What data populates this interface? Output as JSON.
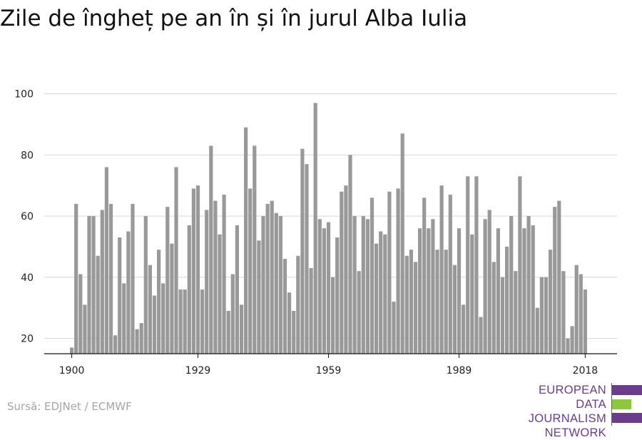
{
  "header": {
    "title": "Zile de îngheț pe an în și în jurul Alba Iulia"
  },
  "footer": {
    "source": "Sursă: EDJNet / ECMWF"
  },
  "logo": {
    "lines": [
      "EUROPEAN",
      "DATA JOURNALISM",
      "NETWORK"
    ],
    "colors": {
      "purple": "#6a3d8a",
      "green": "#8dc63f"
    }
  },
  "chart_data": {
    "type": "bar",
    "title": "Zile de îngheț pe an în și în jurul Alba Iulia",
    "xlabel": "",
    "ylabel": "",
    "x_ticks": [
      1900,
      1929,
      1959,
      1989,
      2018
    ],
    "y_ticks": [
      20,
      40,
      60,
      80,
      100
    ],
    "xlim": [
      1900,
      2018
    ],
    "ylim": [
      15,
      100
    ],
    "grid": true,
    "bar_color": "#999999",
    "years_start": 1900,
    "years_end": 2018,
    "values": [
      17,
      64,
      41,
      31,
      60,
      60,
      47,
      62,
      76,
      64,
      21,
      53,
      38,
      55,
      64,
      23,
      25,
      60,
      44,
      34,
      49,
      38,
      63,
      51,
      76,
      36,
      36,
      57,
      69,
      70,
      36,
      62,
      83,
      65,
      54,
      67,
      29,
      41,
      57,
      31,
      89,
      69,
      83,
      52,
      60,
      64,
      65,
      61,
      60,
      46,
      35,
      29,
      47,
      82,
      77,
      43,
      97,
      59,
      56,
      58,
      40,
      53,
      68,
      70,
      80,
      60,
      42,
      60,
      59,
      66,
      51,
      55,
      54,
      68,
      32,
      69,
      87,
      47,
      49,
      45,
      56,
      66,
      56,
      59,
      49,
      70,
      49,
      67,
      44,
      56,
      31,
      73,
      54,
      73,
      27,
      59,
      62,
      45,
      56,
      40,
      50,
      60,
      42,
      73,
      56,
      60,
      57,
      30,
      40,
      40,
      49,
      63,
      65,
      42,
      20,
      24,
      44,
      41,
      36
    ]
  }
}
